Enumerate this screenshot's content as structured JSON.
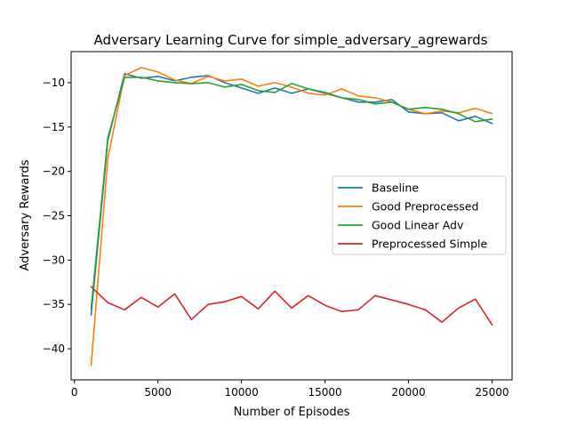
{
  "chart_data": {
    "type": "line",
    "title": "Adversary Learning Curve for simple_adversary_agrewards",
    "xlabel": "Number of Episodes",
    "ylabel": "Adversary Rewards",
    "xlim": [
      -200,
      26200
    ],
    "ylim": [
      -43.5,
      -6.5
    ],
    "xticks": [
      0,
      5000,
      10000,
      15000,
      20000,
      25000
    ],
    "xtick_labels": [
      "0",
      "5000",
      "10000",
      "15000",
      "20000",
      "25000"
    ],
    "yticks": [
      -40,
      -35,
      -30,
      -25,
      -20,
      -15,
      -10
    ],
    "ytick_labels": [
      "−40",
      "−35",
      "−30",
      "−25",
      "−20",
      "−15",
      "−10"
    ],
    "grid": false,
    "legend_position": "center-right",
    "x": [
      1000,
      2000,
      3000,
      4000,
      5000,
      6000,
      7000,
      8000,
      9000,
      10000,
      11000,
      12000,
      13000,
      14000,
      15000,
      16000,
      17000,
      18000,
      19000,
      20000,
      21000,
      22000,
      23000,
      24000,
      25000
    ],
    "series": [
      {
        "name": "Baseline",
        "color": "#1f77b4",
        "values": [
          -36.2,
          -16.5,
          -9.0,
          -9.5,
          -9.3,
          -9.8,
          -9.4,
          -9.2,
          -10.0,
          -10.6,
          -11.2,
          -10.6,
          -11.2,
          -10.7,
          -11.2,
          -11.7,
          -12.2,
          -12.2,
          -11.9,
          -13.3,
          -13.5,
          -13.4,
          -14.3,
          -13.8,
          -14.6
        ]
      },
      {
        "name": "Good Preprocessed",
        "color": "#ff7f0e",
        "values": [
          -41.9,
          -18.5,
          -9.2,
          -8.3,
          -8.8,
          -9.7,
          -10.1,
          -9.3,
          -9.8,
          -9.6,
          -10.4,
          -10.0,
          -10.5,
          -11.2,
          -11.4,
          -10.7,
          -11.5,
          -11.7,
          -12.2,
          -13.0,
          -13.5,
          -13.2,
          -13.4,
          -12.9,
          -13.5
        ]
      },
      {
        "name": "Good Linear Adv",
        "color": "#2ca02c",
        "values": [
          -35.5,
          -16.2,
          -9.4,
          -9.4,
          -9.8,
          -10.0,
          -10.1,
          -10.0,
          -10.5,
          -10.2,
          -10.9,
          -11.1,
          -10.1,
          -10.7,
          -11.1,
          -11.7,
          -11.9,
          -12.4,
          -12.2,
          -13.0,
          -12.8,
          -13.0,
          -13.5,
          -14.4,
          -14.1
        ]
      },
      {
        "name": "Preprocessed Simple",
        "color": "#d62728",
        "values": [
          -33.0,
          -34.8,
          -35.6,
          -34.2,
          -35.3,
          -33.8,
          -36.7,
          -35.0,
          -34.7,
          -34.1,
          -35.5,
          -33.5,
          -35.4,
          -34.0,
          -35.1,
          -35.8,
          -35.6,
          -34.0,
          -34.5,
          -35.0,
          -35.6,
          -37.0,
          -35.4,
          -34.4,
          -37.3
        ]
      }
    ]
  }
}
